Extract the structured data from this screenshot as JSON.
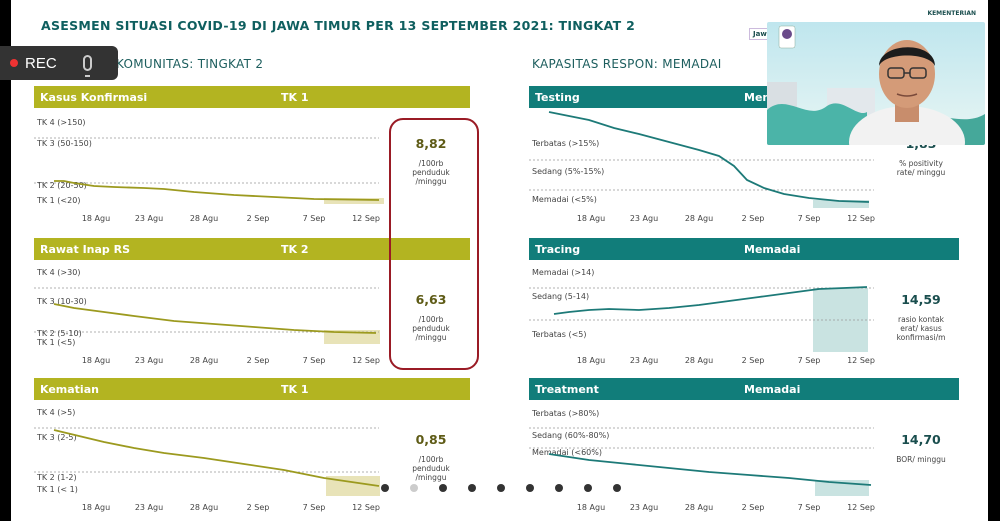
{
  "title": "ASESMEN SITUASI COVID-19 DI JAWA TIMUR PER 13 SEPTEMBER 2021: TINGKAT 2",
  "left_section": "KOMUNITAS: TINGKAT 2",
  "right_section": "KAPASITAS RESPON: MEMADAI",
  "rec": {
    "label": "REC"
  },
  "overlay": {
    "jawa_t": "Jawa T",
    "kementerian": "KEMENTERIAN"
  },
  "colors": {
    "olive": "#b3b421",
    "teal": "#117d7a",
    "olive_line": "#9c9a1f",
    "teal_line": "#1d7a78",
    "highlight_olive": "#e8e3b8",
    "highlight_teal": "#c9e3e1",
    "red_box": "#9a1b25"
  },
  "x_ticks": [
    "18 Agu",
    "23 Agu",
    "28 Agu",
    "2 Sep",
    "7 Sep",
    "12 Sep"
  ],
  "panels_left": [
    {
      "header": "Kasus Konfirmasi",
      "level": "TK 1",
      "levels": [
        "TK 4 (>150)",
        "TK 3 (50-150)",
        "TK 2 (20-50)",
        "TK 1 (<20)"
      ],
      "value": "8,82",
      "unit": [
        "/100rb",
        "penduduk",
        "/minggu"
      ]
    },
    {
      "header": "Rawat Inap RS",
      "level": "TK 2",
      "levels": [
        "TK 4 (>30)",
        "TK 3 (10-30)",
        "TK 2 (5-10)",
        "TK 1 (<5)"
      ],
      "value": "6,63",
      "unit": [
        "/100rb",
        "penduduk",
        "/minggu"
      ]
    },
    {
      "header": "Kematian",
      "level": "TK 1",
      "levels": [
        "TK 4 (>5)",
        "TK 3 (2-5)",
        "TK 2 (1-2)",
        "TK 1 (< 1)"
      ],
      "value": "0,85",
      "unit": [
        "/100rb",
        "penduduk",
        "/minggu"
      ]
    }
  ],
  "panels_right": [
    {
      "header": "Testing",
      "level": "Memadai",
      "levels": [
        "Terbatas (>15%)",
        "Sedang (5%-15%)",
        "Memadai (<5%)"
      ],
      "value": "1,83",
      "unit": [
        "% positivity",
        "rate/ minggu"
      ]
    },
    {
      "header": "Tracing",
      "level": "Memadai",
      "levels": [
        "Memadai (>14)",
        "Sedang (5-14)",
        "Terbatas (<5)"
      ],
      "value": "14,59",
      "unit": [
        "rasio kontak",
        "erat/ kasus",
        "konfirmasi/m"
      ]
    },
    {
      "header": "Treatment",
      "level": "Memadai",
      "levels": [
        "Terbatas (>80%)",
        "Sedang (60%-80%)",
        "Memadai (<60%)"
      ],
      "value": "14,70",
      "unit": [
        "BOR/ minggu"
      ]
    }
  ]
}
